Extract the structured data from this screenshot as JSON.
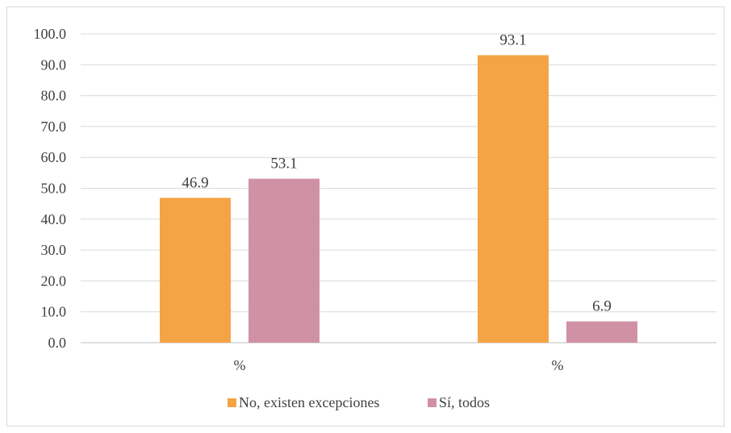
{
  "chart_data": {
    "type": "bar",
    "categories": [
      "%",
      "%"
    ],
    "series": [
      {
        "name": "No, existen excepciones",
        "values": [
          46.9,
          93.1
        ],
        "color": "#F4A445"
      },
      {
        "name": "Sí, todos",
        "values": [
          53.1,
          6.9
        ],
        "color": "#D191A5"
      }
    ],
    "ylim": [
      0,
      100
    ],
    "yticks": [
      "0.0",
      "10.0",
      "20.0",
      "30.0",
      "40.0",
      "50.0",
      "60.0",
      "70.0",
      "80.0",
      "90.0",
      "100.0"
    ],
    "data_labels": [
      [
        "46.9",
        "93.1"
      ],
      [
        "53.1",
        "6.9"
      ]
    ],
    "grid": true,
    "legend_position": "bottom",
    "title": "",
    "xlabel": "",
    "ylabel": ""
  }
}
